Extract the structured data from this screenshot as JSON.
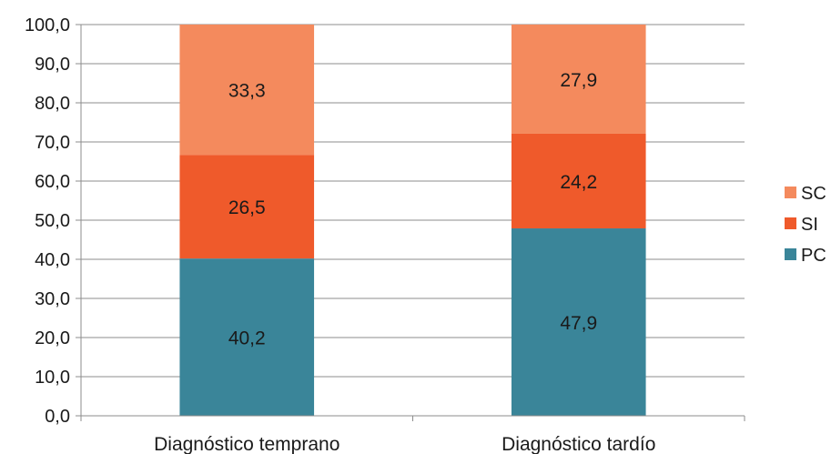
{
  "chart_data": {
    "type": "bar",
    "stacked": true,
    "categories": [
      "Diagnóstico temprano",
      "Diagnóstico tardío"
    ],
    "series": [
      {
        "name": "PC",
        "values": [
          40.2,
          47.9
        ],
        "labels": [
          "40,2",
          "47,9"
        ],
        "color": "#3A8599"
      },
      {
        "name": "SI",
        "values": [
          26.5,
          24.2
        ],
        "labels": [
          "26,5",
          "24,2"
        ],
        "color": "#EF5A2B"
      },
      {
        "name": "SC",
        "values": [
          33.3,
          27.9
        ],
        "labels": [
          "33,3",
          "27,9"
        ],
        "color": "#F48A5D"
      }
    ],
    "ylim": [
      0,
      100
    ],
    "yticks": [
      "0,0",
      "10,0",
      "20,0",
      "30,0",
      "40,0",
      "50,0",
      "60,0",
      "70,0",
      "80,0",
      "90,0",
      "100,0"
    ],
    "grid": true,
    "legend": {
      "placement": "right",
      "order": [
        "SC",
        "SI",
        "PC"
      ]
    },
    "title": "",
    "xlabel": "",
    "ylabel": ""
  }
}
